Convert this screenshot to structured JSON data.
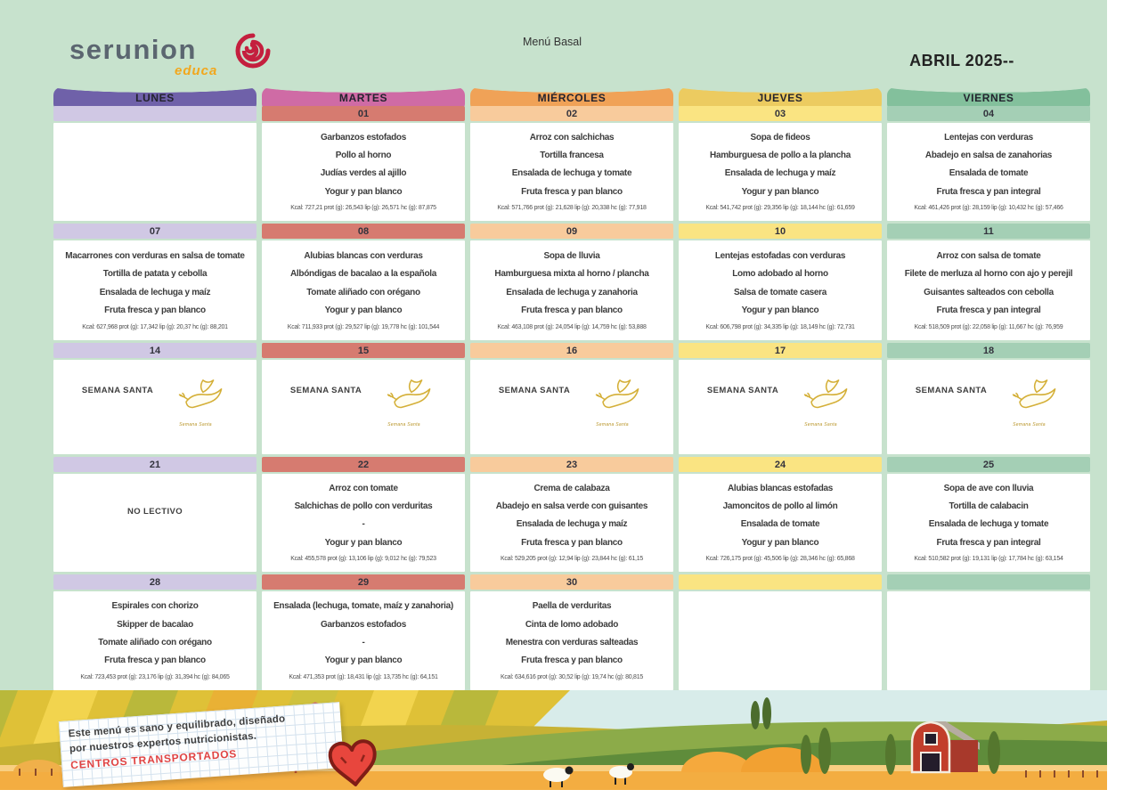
{
  "header": {
    "logo_brand": "serunion",
    "logo_sub": "educa",
    "menu_type": "Menú Basal",
    "month_title": "ABRIL 2025--"
  },
  "colors": {
    "page_background": "#c7e2cd",
    "rose_logo": "#c41f3e",
    "educa_yellow": "#f2a71d",
    "note_red": "#e04343",
    "dove_gold": "#d4af37"
  },
  "columns": [
    {
      "label": "LUNES",
      "header_color": "#6f61a9",
      "bar_color": "#d0c8e4"
    },
    {
      "label": "MARTES",
      "header_color": "#cf6ba5",
      "bar_color": "#d67b70"
    },
    {
      "label": "MIÉRCOLES",
      "header_color": "#f0a257",
      "bar_color": "#f8cb9c"
    },
    {
      "label": "JUEVES",
      "header_color": "#eccb60",
      "bar_color": "#fae482"
    },
    {
      "label": "VIERNES",
      "header_color": "#83c09c",
      "bar_color": "#a4cfb5"
    }
  ],
  "special": {
    "semana_santa_label": "SEMANA SANTA",
    "dove_caption": "Semana Santa",
    "no_lectivo_label": "NO LECTIVO"
  },
  "weeks": [
    {
      "days": [
        {
          "type": "empty",
          "date": ""
        },
        {
          "type": "menu",
          "date": "01",
          "items": [
            "Garbanzos estofados",
            "Pollo al horno",
            "Judías verdes al ajillo",
            "Yogur y pan blanco"
          ],
          "kcal": "Kcal: 727,21 prot (g): 26,543 lip (g): 26,571 hc (g): 87,875"
        },
        {
          "type": "menu",
          "date": "02",
          "items": [
            "Arroz con salchichas",
            "Tortilla francesa",
            "Ensalada de lechuga y tomate",
            "Fruta fresca y pan blanco"
          ],
          "kcal": "Kcal: 571,766 prot (g): 21,628 lip (g): 20,338 hc (g): 77,918"
        },
        {
          "type": "menu",
          "date": "03",
          "items": [
            "Sopa de fideos",
            "Hamburguesa de pollo a la plancha",
            "Ensalada de lechuga y maíz",
            "Yogur y pan blanco"
          ],
          "kcal": "Kcal: 541,742 prot (g): 29,356 lip (g): 18,144 hc (g): 61,659"
        },
        {
          "type": "menu",
          "date": "04",
          "items": [
            "Lentejas con verduras",
            "Abadejo en salsa de zanahorias",
            "Ensalada de tomate",
            "Fruta fresca y pan integral"
          ],
          "kcal": "Kcal: 461,426 prot (g): 28,159 lip (g): 10,432 hc (g): 57,466"
        }
      ]
    },
    {
      "days": [
        {
          "type": "menu",
          "date": "07",
          "items": [
            "Macarrones con verduras en salsa de tomate",
            "Tortilla de patata y cebolla",
            "Ensalada de lechuga y maíz",
            "Fruta fresca y pan blanco"
          ],
          "kcal": "Kcal: 627,968 prot (g): 17,342 lip (g): 20,37 hc (g): 88,201"
        },
        {
          "type": "menu",
          "date": "08",
          "items": [
            "Alubias blancas con verduras",
            "Albóndigas de bacalao a la española",
            "Tomate aliñado con orégano",
            "Yogur y pan blanco"
          ],
          "kcal": "Kcal: 711,933 prot (g): 29,527 lip (g): 19,778 hc (g): 101,544"
        },
        {
          "type": "menu",
          "date": "09",
          "items": [
            "Sopa de lluvia",
            "Hamburguesa mixta al horno / plancha",
            "Ensalada de lechuga y zanahoria",
            "Fruta fresca y pan blanco"
          ],
          "kcal": "Kcal: 463,108 prot (g): 24,054 lip (g): 14,759 hc (g): 53,888"
        },
        {
          "type": "menu",
          "date": "10",
          "items": [
            "Lentejas estofadas con verduras",
            "Lomo adobado al horno",
            "Salsa de tomate casera",
            "Yogur y pan blanco"
          ],
          "kcal": "Kcal: 606,798 prot (g): 34,335 lip (g): 18,149 hc (g): 72,731"
        },
        {
          "type": "menu",
          "date": "11",
          "items": [
            "Arroz con salsa de tomate",
            "Filete de merluza al horno con ajo y perejil",
            "Guisantes salteados con cebolla",
            "Fruta fresca y pan integral"
          ],
          "kcal": "Kcal: 518,509 prot (g): 22,058 lip (g): 11,667 hc (g): 76,959"
        }
      ]
    },
    {
      "days": [
        {
          "type": "semana",
          "date": "14"
        },
        {
          "type": "semana",
          "date": "15"
        },
        {
          "type": "semana",
          "date": "16"
        },
        {
          "type": "semana",
          "date": "17"
        },
        {
          "type": "semana",
          "date": "18"
        }
      ]
    },
    {
      "days": [
        {
          "type": "nolectivo",
          "date": "21"
        },
        {
          "type": "menu",
          "date": "22",
          "items": [
            "Arroz con tomate",
            "Salchichas de pollo con verduritas",
            "-",
            "Yogur y pan blanco"
          ],
          "kcal": "Kcal: 455,578 prot (g): 13,106 lip (g): 9,012 hc (g): 79,523"
        },
        {
          "type": "menu",
          "date": "23",
          "items": [
            "Crema de calabaza",
            "Abadejo en salsa verde con guisantes",
            "Ensalada de lechuga y maíz",
            "Fruta fresca y pan blanco"
          ],
          "kcal": "Kcal: 529,205 prot (g): 12,94 lip (g): 23,844 hc (g): 61,15"
        },
        {
          "type": "menu",
          "date": "24",
          "items": [
            "Alubias blancas estofadas",
            "Jamoncitos de pollo al limón",
            "Ensalada de tomate",
            "Yogur y pan blanco"
          ],
          "kcal": "Kcal: 726,175 prot (g): 45,506 lip (g): 28,346 hc (g): 65,868"
        },
        {
          "type": "menu",
          "date": "25",
          "items": [
            "Sopa de ave con lluvia",
            "Tortilla de calabacin",
            "Ensalada de lechuga y tomate",
            "Fruta fresca y pan integral"
          ],
          "kcal": "Kcal: 510,582 prot (g): 19,131 lip (g): 17,784 hc (g): 63,154"
        }
      ]
    },
    {
      "days": [
        {
          "type": "menu",
          "date": "28",
          "items": [
            "Espirales con chorizo",
            "Skipper de bacalao",
            "Tomate aliñado con orégano",
            "Fruta fresca y pan blanco"
          ],
          "kcal": "Kcal: 723,453 prot (g): 23,176 lip (g): 31,394 hc (g): 84,065"
        },
        {
          "type": "menu",
          "date": "29",
          "items": [
            "Ensalada (lechuga, tomate, maíz y zanahoria)",
            "Garbanzos estofados",
            "-",
            "Yogur y pan blanco"
          ],
          "kcal": "Kcal: 471,353 prot (g): 18,431 lip (g): 13,735 hc (g): 64,151"
        },
        {
          "type": "menu",
          "date": "30",
          "items": [
            "Paella de verduritas",
            "Cinta de lomo adobado",
            "Menestra con verduras salteadas",
            "Fruta fresca y pan blanco"
          ],
          "kcal": "Kcal: 634,616 prot (g): 30,52 lip (g): 19,74 hc (g): 80,815"
        },
        {
          "type": "empty",
          "date": ""
        },
        {
          "type": "empty",
          "date": ""
        }
      ]
    },
    {
      "days": []
    }
  ],
  "footer": {
    "note_line1": "Este menú es sano y equilibrado, diseñado",
    "note_line2": "por nuestros expertos nutricionistas.",
    "note_line3": "CENTROS TRANSPORTADOS"
  }
}
